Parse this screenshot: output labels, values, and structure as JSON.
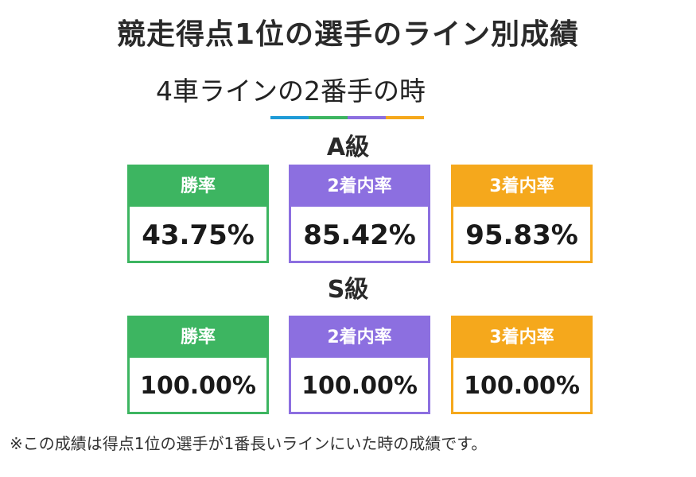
{
  "title": "競走得点1位の選手のライン別成績",
  "subtitle": "4車ラインの2番手の時",
  "divider_colors": [
    "#1e9bd7",
    "#3db561",
    "#8c6fe0",
    "#f5a81c"
  ],
  "sections": [
    {
      "label": "A級",
      "cards": [
        {
          "header": "勝率",
          "value": "43.75%",
          "color": "#3db561"
        },
        {
          "header": "2着内率",
          "value": "85.42%",
          "color": "#8c6fe0"
        },
        {
          "header": "3着内率",
          "value": "95.83%",
          "color": "#f5a81c"
        }
      ]
    },
    {
      "label": "S級",
      "cards": [
        {
          "header": "勝率",
          "value": "100.00%",
          "color": "#3db561"
        },
        {
          "header": "2着内率",
          "value": "100.00%",
          "color": "#8c6fe0"
        },
        {
          "header": "3着内率",
          "value": "100.00%",
          "color": "#f5a81c"
        }
      ]
    }
  ],
  "footnote": "※この成績は得点1位の選手が1番長いラインにいた時の成績です。"
}
